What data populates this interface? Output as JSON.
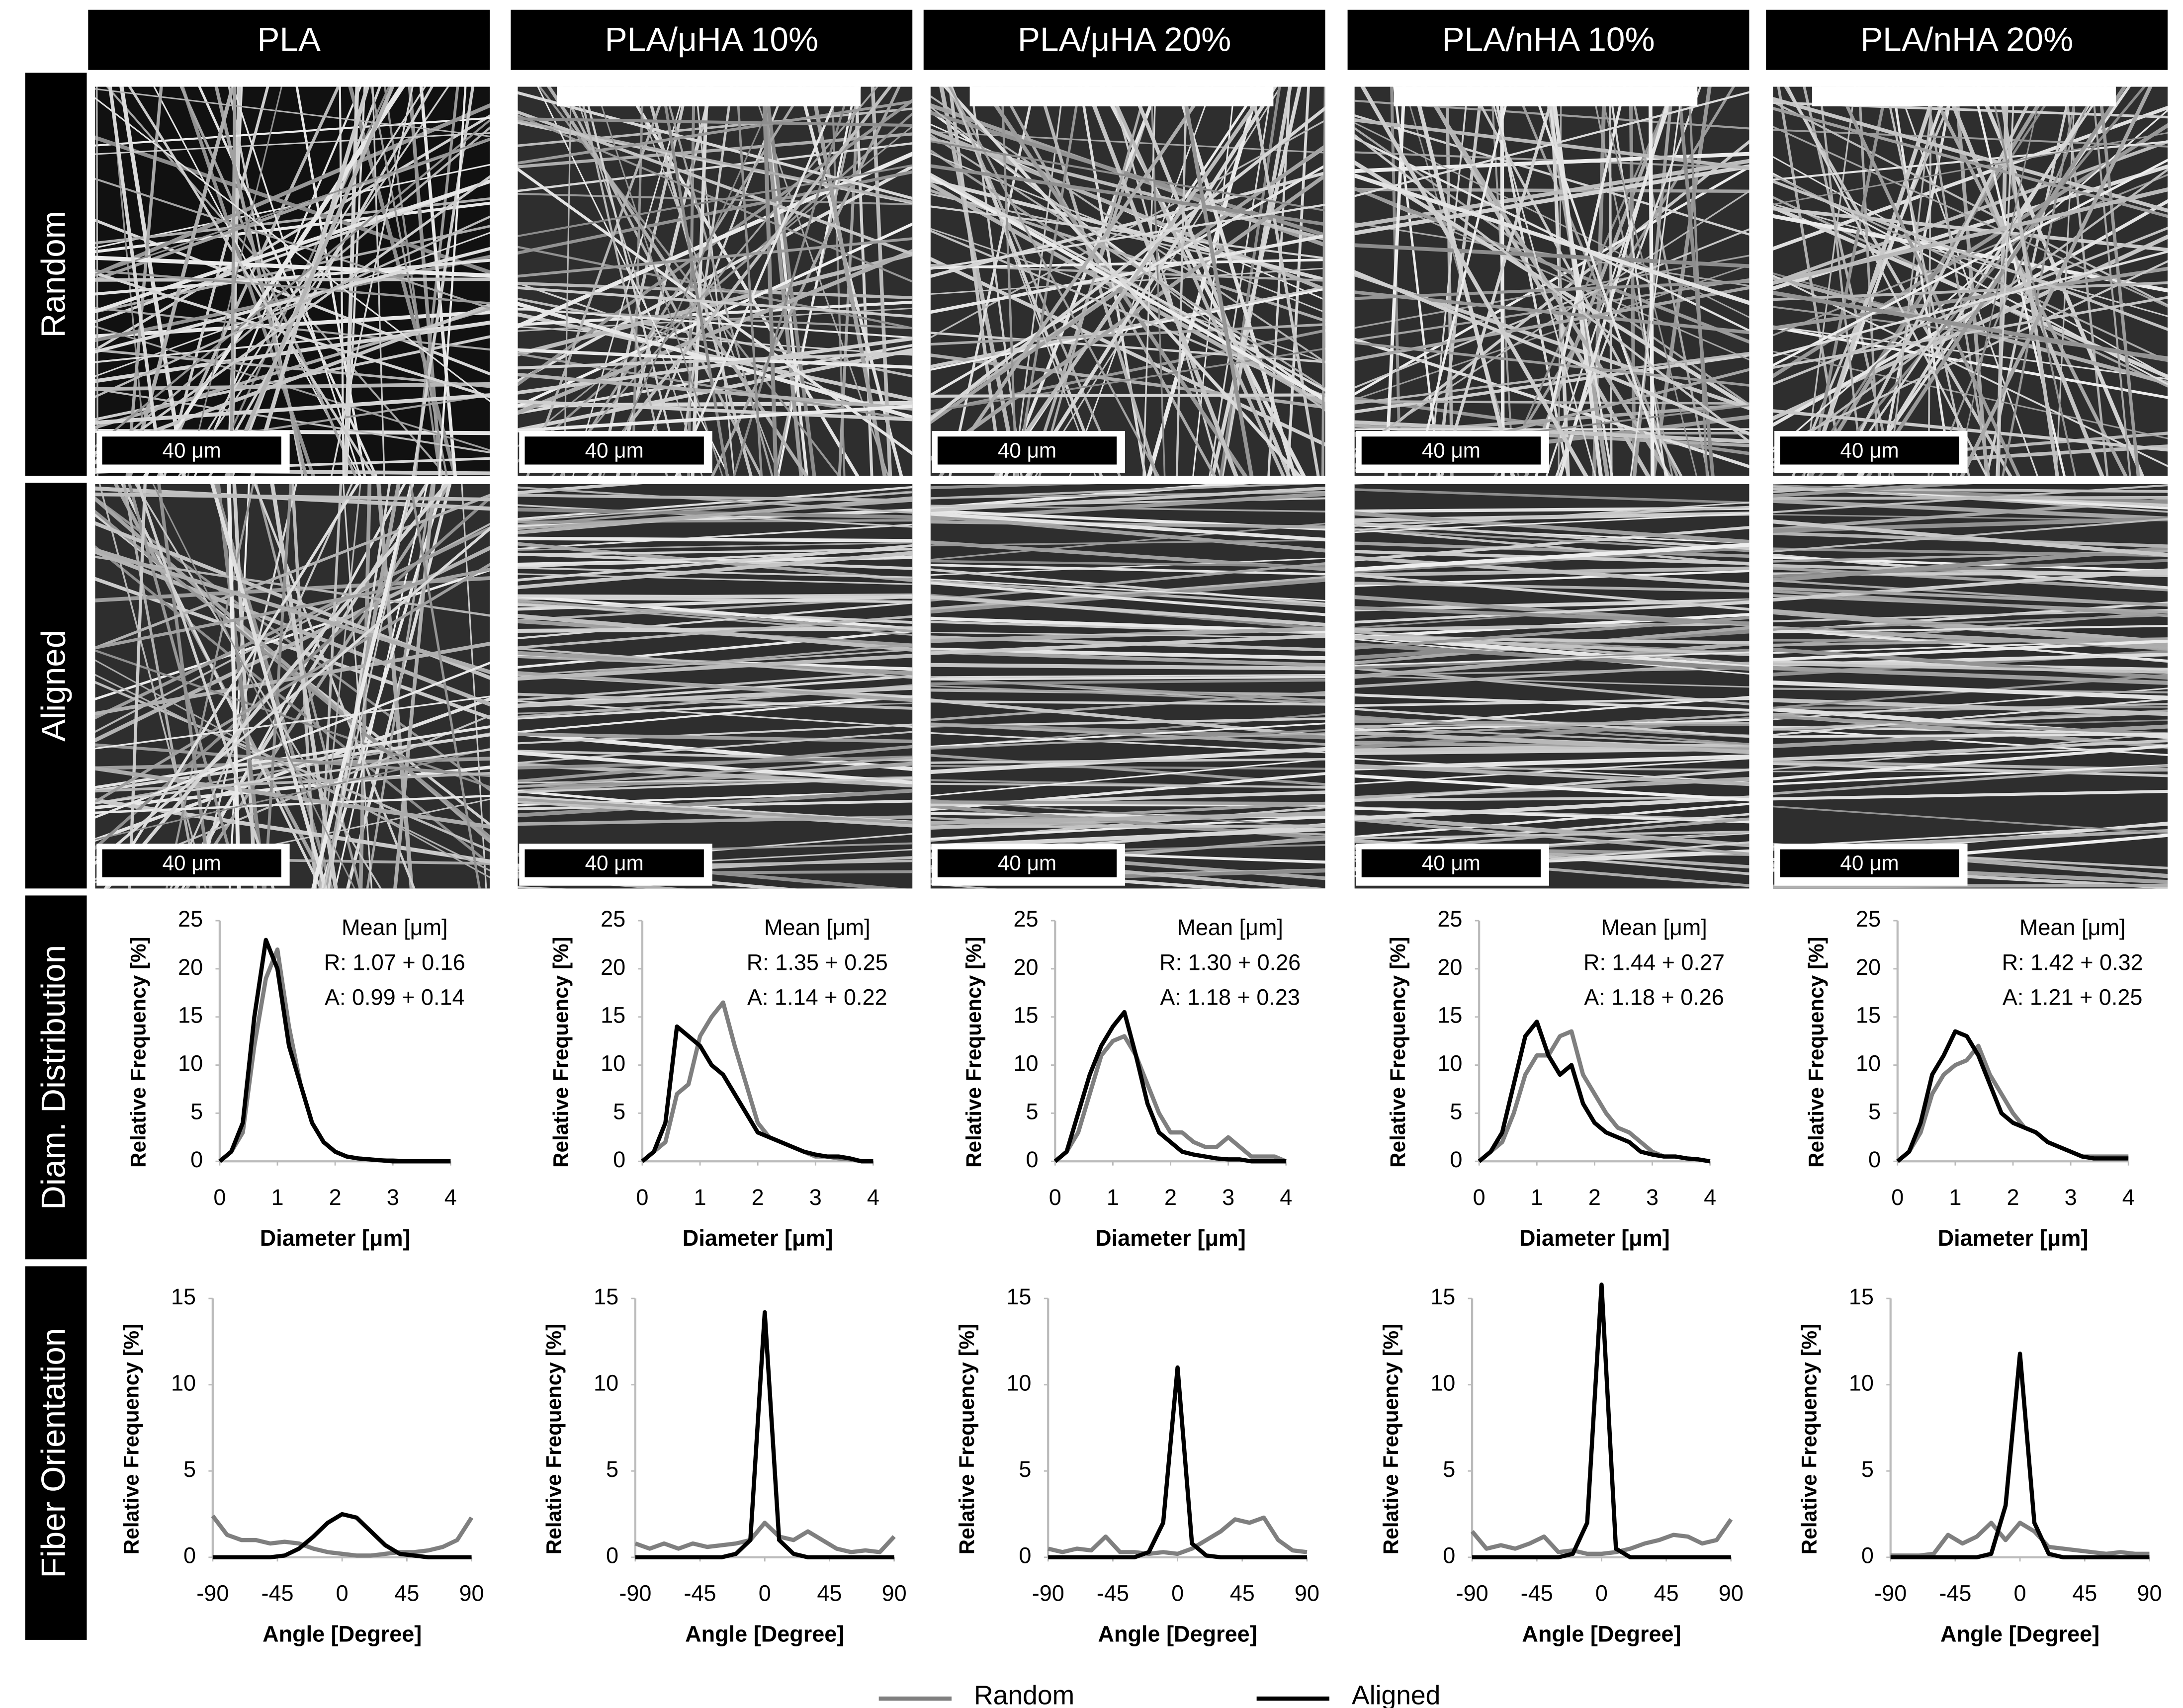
{
  "columns": [
    "PLA",
    "PLA/μHA 10%",
    "PLA/μHA 20%",
    "PLA/nHA 10%",
    "PLA/nHA 20%"
  ],
  "rows": [
    "Random",
    "Aligned",
    "Diam. Distribution",
    "Fiber Orientation"
  ],
  "scale_bar": "40 μm",
  "chart_data": [
    {
      "type": "line",
      "xlabel": "Diameter [μm]",
      "ylabel": "Relative Frequency [%]",
      "annotations": [
        "Mean [μm]",
        "R: 1.07 + 0.16",
        "A: 0.99 + 0.14"
      ],
      "x": [
        0,
        0.2,
        0.4,
        0.6,
        0.8,
        1,
        1.2,
        1.4,
        1.6,
        1.8,
        2,
        2.2,
        2.4,
        2.6,
        2.8,
        3,
        3.2,
        3.4,
        3.6,
        3.8,
        4
      ],
      "series": [
        {
          "name": "Random",
          "color": "#7f7f7f",
          "values": [
            0,
            1,
            3,
            12,
            19,
            22,
            14,
            8,
            4,
            2,
            1,
            0.5,
            0.3,
            0.2,
            0.1,
            0.1,
            0,
            0,
            0,
            0,
            0
          ]
        },
        {
          "name": "Aligned",
          "color": "#000000",
          "values": [
            0,
            1,
            4,
            15,
            23,
            20,
            12,
            8,
            4,
            2,
            1,
            0.5,
            0.3,
            0.2,
            0.1,
            0,
            0,
            0,
            0,
            0,
            0
          ]
        }
      ],
      "xlim": [
        0,
        4
      ],
      "ylim": [
        0,
        25
      ],
      "xticks": [
        0,
        1,
        2,
        3,
        4
      ],
      "yticks": [
        0,
        5,
        10,
        15,
        20,
        25
      ]
    },
    {
      "type": "line",
      "xlabel": "Diameter [μm]",
      "ylabel": "Relative Frequency [%]",
      "annotations": [
        "Mean [μm]",
        "R: 1.35 + 0.25",
        "A: 1.14 + 0.22"
      ],
      "x": [
        0,
        0.2,
        0.4,
        0.6,
        0.8,
        1,
        1.2,
        1.4,
        1.6,
        1.8,
        2,
        2.2,
        2.4,
        2.6,
        2.8,
        3,
        3.2,
        3.4,
        3.6,
        3.8,
        4
      ],
      "series": [
        {
          "name": "Random",
          "color": "#7f7f7f",
          "values": [
            0,
            1,
            2,
            7,
            8,
            13,
            15,
            16.5,
            12,
            8,
            4,
            2.5,
            2,
            1.5,
            1,
            0.5,
            0.5,
            0.3,
            0.2,
            0,
            0
          ]
        },
        {
          "name": "Aligned",
          "color": "#000000",
          "values": [
            0,
            1,
            4,
            14,
            13,
            12,
            10,
            9,
            7,
            5,
            3,
            2.5,
            2,
            1.5,
            1,
            0.7,
            0.5,
            0.5,
            0.3,
            0,
            0
          ]
        }
      ],
      "xlim": [
        0,
        4
      ],
      "ylim": [
        0,
        25
      ],
      "xticks": [
        0,
        1,
        2,
        3,
        4
      ],
      "yticks": [
        0,
        5,
        10,
        15,
        20,
        25
      ]
    },
    {
      "type": "line",
      "xlabel": "Diameter [μm]",
      "ylabel": "Relative Frequency [%]",
      "annotations": [
        "Mean [μm]",
        "R: 1.30 + 0.26",
        "A: 1.18 + 0.23"
      ],
      "x": [
        0,
        0.2,
        0.4,
        0.6,
        0.8,
        1,
        1.2,
        1.4,
        1.6,
        1.8,
        2,
        2.2,
        2.4,
        2.6,
        2.8,
        3,
        3.2,
        3.4,
        3.6,
        3.8,
        4
      ],
      "series": [
        {
          "name": "Random",
          "color": "#7f7f7f",
          "values": [
            0,
            1,
            3,
            7,
            11,
            12.5,
            13,
            11,
            8,
            5,
            3,
            3,
            2,
            1.5,
            1.5,
            2.5,
            1.5,
            0.5,
            0.5,
            0.5,
            0
          ]
        },
        {
          "name": "Aligned",
          "color": "#000000",
          "values": [
            0,
            1,
            5,
            9,
            12,
            14,
            15.5,
            11,
            6,
            3,
            2,
            1,
            0.7,
            0.5,
            0.3,
            0.2,
            0.2,
            0,
            0,
            0,
            0
          ]
        }
      ],
      "xlim": [
        0,
        4
      ],
      "ylim": [
        0,
        25
      ],
      "xticks": [
        0,
        1,
        2,
        3,
        4
      ],
      "yticks": [
        0,
        5,
        10,
        15,
        20,
        25
      ]
    },
    {
      "type": "line",
      "xlabel": "Diameter [μm]",
      "ylabel": "Relative Frequency [%]",
      "annotations": [
        "Mean [μm]",
        "R: 1.44 + 0.27",
        "A: 1.18 + 0.26"
      ],
      "x": [
        0,
        0.2,
        0.4,
        0.6,
        0.8,
        1,
        1.2,
        1.4,
        1.6,
        1.8,
        2,
        2.2,
        2.4,
        2.6,
        2.8,
        3,
        3.2,
        3.4,
        3.6,
        3.8,
        4
      ],
      "series": [
        {
          "name": "Random",
          "color": "#7f7f7f",
          "values": [
            0,
            1,
            2,
            5,
            9,
            11,
            11,
            13,
            13.5,
            9,
            7,
            5,
            3.5,
            3,
            2,
            1,
            0.5,
            0.5,
            0.3,
            0.2,
            0
          ]
        },
        {
          "name": "Aligned",
          "color": "#000000",
          "values": [
            0,
            1,
            3,
            8,
            13,
            14.5,
            11,
            9,
            10,
            6,
            4,
            3,
            2.5,
            2,
            1,
            0.7,
            0.5,
            0.5,
            0.3,
            0.2,
            0
          ]
        }
      ],
      "xlim": [
        0,
        4
      ],
      "ylim": [
        0,
        25
      ],
      "xticks": [
        0,
        1,
        2,
        3,
        4
      ],
      "yticks": [
        0,
        5,
        10,
        15,
        20,
        25
      ]
    },
    {
      "type": "line",
      "xlabel": "Diameter [μm]",
      "ylabel": "Relative Frequency [%]",
      "annotations": [
        "Mean [μm]",
        "R: 1.42 + 0.32",
        "A: 1.21 + 0.25"
      ],
      "x": [
        0,
        0.2,
        0.4,
        0.6,
        0.8,
        1,
        1.2,
        1.4,
        1.6,
        1.8,
        2,
        2.2,
        2.4,
        2.6,
        2.8,
        3,
        3.2,
        3.4,
        3.6,
        3.8,
        4
      ],
      "series": [
        {
          "name": "Random",
          "color": "#7f7f7f",
          "values": [
            0,
            1,
            3,
            7,
            9,
            10,
            10.5,
            12,
            9,
            7,
            5,
            3.5,
            3,
            2,
            1.5,
            1,
            0.5,
            0.5,
            0.5,
            0.5,
            0.5
          ]
        },
        {
          "name": "Aligned",
          "color": "#000000",
          "values": [
            0,
            1,
            4,
            9,
            11,
            13.5,
            13,
            11,
            8,
            5,
            4,
            3.5,
            3,
            2,
            1.5,
            1,
            0.5,
            0.3,
            0.3,
            0.3,
            0.3
          ]
        }
      ],
      "xlim": [
        0,
        4
      ],
      "ylim": [
        0,
        25
      ],
      "xticks": [
        0,
        1,
        2,
        3,
        4
      ],
      "yticks": [
        0,
        5,
        10,
        15,
        20,
        25
      ]
    },
    {
      "type": "line",
      "xlabel": "Angle [Degree]",
      "ylabel": "Relative Frequency [%]",
      "x": [
        -90,
        -80,
        -70,
        -60,
        -50,
        -40,
        -30,
        -20,
        -10,
        0,
        10,
        20,
        30,
        40,
        50,
        60,
        70,
        80,
        90
      ],
      "series": [
        {
          "name": "Random",
          "color": "#7f7f7f",
          "values": [
            2.4,
            1.3,
            1.0,
            1.0,
            0.8,
            0.9,
            0.8,
            0.5,
            0.3,
            0.2,
            0.1,
            0.1,
            0.2,
            0.3,
            0.3,
            0.4,
            0.6,
            1.0,
            2.3
          ]
        },
        {
          "name": "Aligned",
          "color": "#000000",
          "values": [
            0,
            0,
            0,
            0,
            0,
            0.1,
            0.5,
            1.2,
            2.0,
            2.5,
            2.3,
            1.5,
            0.7,
            0.2,
            0.1,
            0,
            0,
            0,
            0
          ]
        }
      ],
      "xlim": [
        -90,
        90
      ],
      "ylim": [
        0,
        15
      ],
      "xticks": [
        -90,
        -45,
        0,
        45,
        90
      ],
      "yticks": [
        0,
        5,
        10,
        15
      ]
    },
    {
      "type": "line",
      "xlabel": "Angle [Degree]",
      "ylabel": "Relative Frequency [%]",
      "x": [
        -90,
        -80,
        -70,
        -60,
        -50,
        -40,
        -30,
        -20,
        -10,
        0,
        10,
        20,
        30,
        40,
        50,
        60,
        70,
        80,
        90
      ],
      "series": [
        {
          "name": "Random",
          "color": "#7f7f7f",
          "values": [
            0.8,
            0.5,
            0.8,
            0.5,
            0.8,
            0.6,
            0.7,
            0.8,
            1.0,
            2.0,
            1.2,
            1.0,
            1.5,
            1.0,
            0.5,
            0.3,
            0.4,
            0.3,
            1.2
          ]
        },
        {
          "name": "Aligned",
          "color": "#000000",
          "values": [
            0,
            0,
            0,
            0,
            0,
            0,
            0,
            0.2,
            1.0,
            14.2,
            1.0,
            0.2,
            0,
            0,
            0,
            0,
            0,
            0,
            0
          ]
        }
      ],
      "xlim": [
        -90,
        90
      ],
      "ylim": [
        0,
        15
      ],
      "xticks": [
        -90,
        -45,
        0,
        45,
        90
      ],
      "yticks": [
        0,
        5,
        10,
        15
      ]
    },
    {
      "type": "line",
      "xlabel": "Angle [Degree]",
      "ylabel": "Relative Frequency [%]",
      "x": [
        -90,
        -80,
        -70,
        -60,
        -50,
        -40,
        -30,
        -20,
        -10,
        0,
        10,
        20,
        30,
        40,
        50,
        60,
        70,
        80,
        90
      ],
      "series": [
        {
          "name": "Random",
          "color": "#7f7f7f",
          "values": [
            0.5,
            0.3,
            0.5,
            0.4,
            1.2,
            0.3,
            0.3,
            0.2,
            0.3,
            0.2,
            0.5,
            1.0,
            1.5,
            2.2,
            2.0,
            2.3,
            1.0,
            0.4,
            0.3
          ]
        },
        {
          "name": "Aligned",
          "color": "#000000",
          "values": [
            0,
            0,
            0,
            0,
            0,
            0,
            0,
            0.3,
            2.0,
            11.0,
            0.8,
            0.1,
            0,
            0,
            0,
            0,
            0,
            0,
            0
          ]
        }
      ],
      "xlim": [
        -90,
        90
      ],
      "ylim": [
        0,
        15
      ],
      "xticks": [
        -90,
        -45,
        0,
        45,
        90
      ],
      "yticks": [
        0,
        5,
        10,
        15
      ]
    },
    {
      "type": "line",
      "xlabel": "Angle [Degree]",
      "ylabel": "Relative Frequency [%]",
      "x": [
        -90,
        -80,
        -70,
        -60,
        -50,
        -40,
        -30,
        -20,
        -10,
        0,
        10,
        20,
        30,
        40,
        50,
        60,
        70,
        80,
        90
      ],
      "series": [
        {
          "name": "Random",
          "color": "#7f7f7f",
          "values": [
            1.5,
            0.5,
            0.7,
            0.5,
            0.8,
            1.2,
            0.3,
            0.4,
            0.2,
            0.2,
            0.3,
            0.5,
            0.8,
            1.0,
            1.3,
            1.2,
            0.8,
            1.0,
            2.2
          ]
        },
        {
          "name": "Aligned",
          "color": "#000000",
          "values": [
            0,
            0,
            0,
            0,
            0,
            0,
            0,
            0.2,
            2.0,
            15.8,
            0.5,
            0,
            0,
            0,
            0,
            0,
            0,
            0,
            0
          ]
        }
      ],
      "xlim": [
        -90,
        90
      ],
      "ylim": [
        0,
        15
      ],
      "xticks": [
        -90,
        -45,
        0,
        45,
        90
      ],
      "yticks": [
        0,
        5,
        10,
        15
      ]
    },
    {
      "type": "line",
      "xlabel": "Angle [Degree]",
      "ylabel": "Relative Frequency [%]",
      "x": [
        -90,
        -80,
        -70,
        -60,
        -50,
        -40,
        -30,
        -20,
        -10,
        0,
        10,
        20,
        30,
        40,
        50,
        60,
        70,
        80,
        90
      ],
      "series": [
        {
          "name": "Random",
          "color": "#7f7f7f",
          "values": [
            0.1,
            0.1,
            0.1,
            0.2,
            1.3,
            0.8,
            1.2,
            2.0,
            1.0,
            2.0,
            1.5,
            0.6,
            0.5,
            0.4,
            0.3,
            0.2,
            0.3,
            0.2,
            0.2
          ]
        },
        {
          "name": "Aligned",
          "color": "#000000",
          "values": [
            0,
            0,
            0,
            0,
            0,
            0,
            0,
            0.2,
            3.0,
            11.8,
            2.0,
            0.2,
            0,
            0,
            0,
            0,
            0,
            0,
            0
          ]
        }
      ],
      "xlim": [
        -90,
        90
      ],
      "ylim": [
        0,
        15
      ],
      "xticks": [
        -90,
        -45,
        0,
        45,
        90
      ],
      "yticks": [
        0,
        5,
        10,
        15
      ]
    }
  ]
}
